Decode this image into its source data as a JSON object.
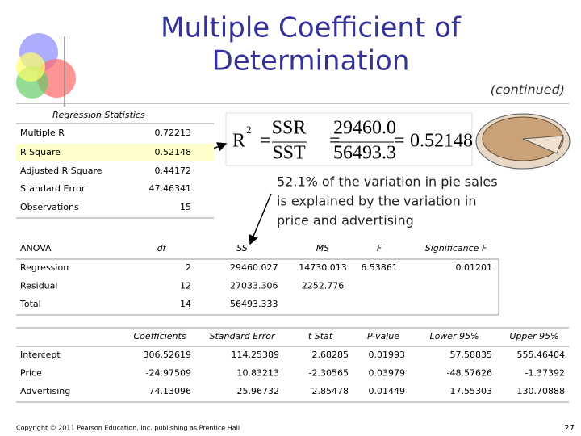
{
  "header": {
    "title_lines": [
      "Multiple Coefficient of",
      "Determination"
    ],
    "subtitle": "(continued)"
  },
  "regression_statistics": {
    "title": "Regression Statistics",
    "rows": [
      [
        "Multiple R",
        "0.72213"
      ],
      [
        "R Square",
        "0.52148"
      ],
      [
        "Adjusted R Square",
        "0.44172"
      ],
      [
        "Standard Error",
        "47.46341"
      ],
      [
        "Observations",
        "15"
      ]
    ]
  },
  "formula": {
    "symbol": "R",
    "exponent": "2",
    "equals": "=",
    "numerator_name": "SSR",
    "denominator_name": "SST",
    "numerator": "29460.0",
    "denominator": "56493.3",
    "result": "0.52148"
  },
  "callout": {
    "lines": [
      "52.1% of the variation in pie sales",
      "is explained by the variation in",
      "price and advertising"
    ]
  },
  "anova": {
    "headers": [
      "ANOVA",
      "df",
      "SS",
      "MS",
      "F",
      "Significance F"
    ],
    "rows": [
      [
        "Regression",
        "2",
        "29460.027",
        "14730.013",
        "6.53861",
        "0.01201"
      ],
      [
        "Residual",
        "12",
        "27033.306",
        "2252.776"
      ],
      [
        "Total",
        "14",
        "56493.333"
      ]
    ]
  },
  "coefficients": {
    "headers": [
      "Coefficients",
      "Standard Error",
      "t Stat",
      "P-value",
      "Lower 95%",
      "Upper 95%"
    ],
    "rows": [
      [
        "Intercept",
        "306.52619",
        "114.25389",
        "2.68285",
        "0.01993",
        "57.58835",
        "555.46404"
      ],
      [
        "Price",
        "-24.97509",
        "10.83213",
        "-2.30565",
        "0.03979",
        "-48.57626",
        "-1.37392"
      ],
      [
        "Advertising",
        "74.13096",
        "25.96732",
        "2.85478",
        "0.01449",
        "17.55303",
        "130.70888"
      ]
    ]
  },
  "footer": {
    "copyright": "Copyright © 2011 Pearson Education, Inc. publishing as Prentice Hall",
    "page_number": "27"
  }
}
